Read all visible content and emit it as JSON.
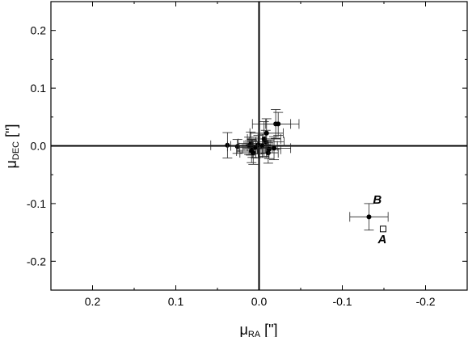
{
  "chart_data": {
    "type": "scatter",
    "xlabel": {
      "main": "μ",
      "sub": "RA",
      "unit": " [\"]"
    },
    "ylabel": {
      "main": "μ",
      "sub": "DEC",
      "unit": " [\"]"
    },
    "xlim": [
      0.25,
      -0.25
    ],
    "ylim": [
      -0.25,
      0.25
    ],
    "x_reversed": true,
    "xticks": [
      0.2,
      0.1,
      0.0,
      -0.1,
      -0.2
    ],
    "xtick_labels": [
      "0.2",
      "0.1",
      "0.0",
      "-0.1",
      "-0.2"
    ],
    "yticks": [
      0.2,
      0.1,
      0.0,
      -0.1,
      -0.2
    ],
    "ytick_labels": [
      "0.2",
      "0.1",
      "0.0",
      "-0.1",
      "-0.2"
    ],
    "grid": false,
    "zero_lines": true,
    "series": [
      {
        "marker": "filled-circle",
        "points": [
          {
            "x": 0.038,
            "y": 0.001,
            "xerr": 0.02,
            "yerr": 0.022
          },
          {
            "x": 0.026,
            "y": -0.001,
            "xerr": 0.012,
            "yerr": 0.012
          },
          {
            "x": 0.012,
            "y": 0.0,
            "xerr": 0.022,
            "yerr": 0.015
          },
          {
            "x": 0.01,
            "y": 0.004,
            "xerr": 0.015,
            "yerr": 0.02
          },
          {
            "x": 0.009,
            "y": -0.009,
            "xerr": 0.018,
            "yerr": 0.02
          },
          {
            "x": 0.008,
            "y": -0.005,
            "xerr": 0.012,
            "yerr": 0.015
          },
          {
            "x": 0.007,
            "y": -0.012,
            "xerr": 0.016,
            "yerr": 0.02
          },
          {
            "x": 0.004,
            "y": -0.003,
            "xerr": 0.02,
            "yerr": 0.018
          },
          {
            "x": 0.001,
            "y": 0.002,
            "xerr": 0.015,
            "yerr": 0.016
          },
          {
            "x": -0.004,
            "y": 0.0,
            "xerr": 0.018,
            "yerr": 0.02
          },
          {
            "x": -0.006,
            "y": 0.012,
            "xerr": 0.02,
            "yerr": 0.03
          },
          {
            "x": -0.008,
            "y": 0.007,
            "xerr": 0.022,
            "yerr": 0.02
          },
          {
            "x": -0.009,
            "y": 0.022,
            "xerr": 0.02,
            "yerr": 0.025
          },
          {
            "x": -0.011,
            "y": -0.012,
            "xerr": 0.012,
            "yerr": 0.018
          },
          {
            "x": -0.012,
            "y": -0.006,
            "xerr": 0.014,
            "yerr": 0.016
          },
          {
            "x": -0.018,
            "y": -0.004,
            "xerr": 0.02,
            "yerr": 0.02
          },
          {
            "x": -0.02,
            "y": 0.038,
            "xerr": 0.028,
            "yerr": 0.025
          },
          {
            "x": -0.023,
            "y": 0.038,
            "xerr": 0.015,
            "yerr": 0.02
          },
          {
            "x": -0.132,
            "y": -0.123,
            "xerr": 0.023,
            "yerr": 0.023
          }
        ]
      },
      {
        "marker": "open-square",
        "points": [
          {
            "x": -0.149,
            "y": -0.144
          }
        ]
      }
    ],
    "annotations": [
      {
        "text": "B",
        "x": -0.142,
        "y": -0.1
      },
      {
        "text": "A",
        "x": -0.148,
        "y": -0.169
      }
    ]
  }
}
